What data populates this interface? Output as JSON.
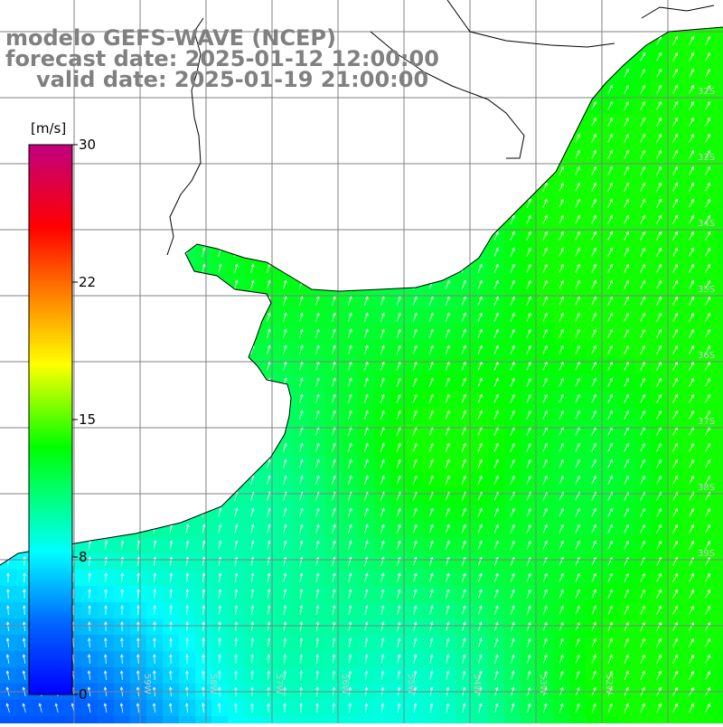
{
  "title": {
    "line1": "modelo GEFS-WAVE (NCEP)",
    "line2": "forecast date: 2025-01-12 12:00:00",
    "line3": "valid date: 2025-01-19 21:00:00"
  },
  "colorbar": {
    "unit": "[m/s]",
    "ticks": [
      "30",
      "22",
      "15",
      "8",
      "0"
    ]
  },
  "grid": {
    "lon_labels": [
      "59W",
      "58W",
      "57W",
      "56W",
      "55W",
      "54W",
      "53W",
      "52W"
    ],
    "lat_labels": [
      "32S",
      "33S",
      "34S",
      "35S",
      "36S",
      "37S",
      "38S",
      "39S"
    ]
  },
  "colors": {
    "land": "#ffffff",
    "coast": "#000000",
    "grid": "#808080",
    "arrow": "#ffffff"
  }
}
